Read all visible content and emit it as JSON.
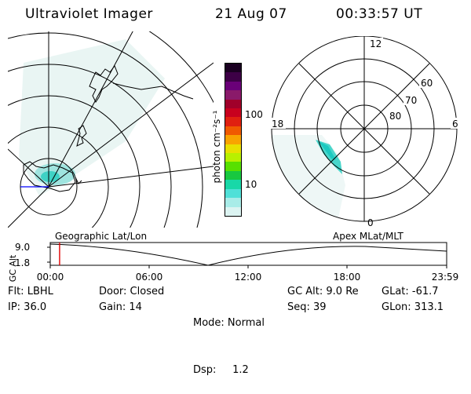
{
  "header": {
    "instrument": "Ultraviolet Imager",
    "date": "21 Aug 07",
    "time": "00:33:57 UT"
  },
  "colorbar": {
    "label": "photon cm⁻²s⁻¹",
    "ticks": [
      "100",
      "10"
    ],
    "colors": [
      "#1a0021",
      "#3d0046",
      "#6a0078",
      "#8a1a6a",
      "#a0002a",
      "#c8001e",
      "#e02010",
      "#f05a00",
      "#f8a400",
      "#e8e000",
      "#b8f000",
      "#58e000",
      "#18c840",
      "#18d8a8",
      "#50e0d8",
      "#a8ece8",
      "#dcf4f2"
    ]
  },
  "polar_plot": {
    "mlt_labels": {
      "top": "12",
      "left": "18",
      "right": "6",
      "bottom": "0"
    },
    "lat_labels": [
      "60",
      "70",
      "80"
    ]
  },
  "timeline": {
    "y_label": "GC Alt",
    "y_ticks": [
      "9.0",
      "1.8"
    ],
    "left_caption": "Geographic Lat/Lon",
    "right_caption": "Apex  MLat/MLT",
    "time_ticks": [
      "00:00",
      "06:00",
      "12:00",
      "18:00",
      "23:59"
    ],
    "current_time_fraction": 0.0236,
    "colors": {
      "marker": "#e00000"
    }
  },
  "info": {
    "col1": [
      "Flt: LBHL",
      "IP: 36.0"
    ],
    "col2": [
      "Door: Closed",
      "Gain: 14"
    ],
    "col3": [
      "Mode: Normal",
      "Dsp:     1.2"
    ],
    "col4": [
      "GC Alt: 9.0 Re",
      "Seq: 39"
    ],
    "col5": [
      "GLat: -61.7",
      "GLon: 313.1"
    ]
  }
}
